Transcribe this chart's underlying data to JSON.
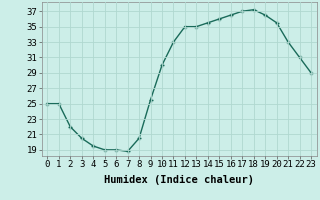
{
  "x": [
    0,
    1,
    2,
    3,
    4,
    5,
    6,
    7,
    8,
    9,
    10,
    11,
    12,
    13,
    14,
    15,
    16,
    17,
    18,
    19,
    20,
    21,
    22,
    23
  ],
  "y": [
    25,
    25,
    22,
    20.5,
    19.5,
    19,
    19,
    18.8,
    20.5,
    25.5,
    30,
    33,
    35,
    35,
    35.5,
    36,
    36.5,
    37,
    37.2,
    36.5,
    35.5,
    33,
    31,
    29
  ],
  "line_color": "#1a6b5a",
  "marker": "+",
  "bg_color": "#cceee8",
  "grid_color": "#b0d8d0",
  "xlabel": "Humidex (Indice chaleur)",
  "ylabel_ticks": [
    19,
    21,
    23,
    25,
    27,
    29,
    31,
    33,
    35,
    37
  ],
  "xlim": [
    -0.5,
    23.5
  ],
  "ylim": [
    18.2,
    38.2
  ],
  "xtick_labels": [
    "0",
    "1",
    "2",
    "3",
    "4",
    "5",
    "6",
    "7",
    "8",
    "9",
    "10",
    "11",
    "12",
    "13",
    "14",
    "15",
    "16",
    "17",
    "18",
    "19",
    "20",
    "21",
    "22",
    "23"
  ],
  "xlabel_fontsize": 7.5,
  "tick_fontsize": 6.5,
  "line_width": 1.0,
  "marker_size": 3.5
}
